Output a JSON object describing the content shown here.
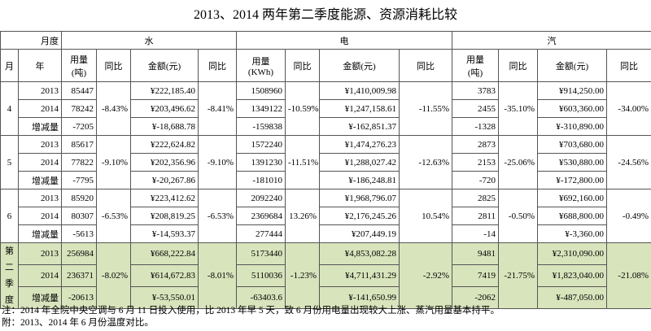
{
  "title": "2013、2014 两年第二季度能源、资源消耗比较",
  "header": {
    "month_label": "月度",
    "water": "水",
    "electricity": "电",
    "steam": "汽",
    "columns": [
      "月",
      "年",
      "用量\n(吨)",
      "同比",
      "金额(元)",
      "同比",
      "用量\n(KWh)",
      "同比",
      "金额(元)",
      "同比",
      "用量\n(吨)",
      "同比",
      "金额(元)",
      "同比"
    ]
  },
  "groups": [
    {
      "month": "4",
      "rows": [
        [
          "2013",
          "85447",
          "¥222,185.40",
          "1508960",
          "¥1,410,009.98",
          "3783",
          "¥914,250.00"
        ],
        [
          "2014",
          "78242",
          "¥203,496.62",
          "1349122",
          "¥1,247,158.61",
          "2455",
          "¥603,360.00"
        ],
        [
          "增减量",
          "-7205",
          "¥-18,688.78",
          "-159838",
          "¥-162,851.37",
          "-1328",
          "¥-310,890.00"
        ]
      ],
      "yoy": [
        "-8.43%",
        "-8.41%",
        "-10.59%",
        "-11.55%",
        "-35.10%",
        "-34.00%"
      ]
    },
    {
      "month": "5",
      "rows": [
        [
          "2013",
          "85617",
          "¥222,624.82",
          "1572240",
          "¥1,474,276.23",
          "2873",
          "¥703,680.00"
        ],
        [
          "2014",
          "77822",
          "¥202,356.96",
          "1391230",
          "¥1,288,027.42",
          "2153",
          "¥530,880.00"
        ],
        [
          "增减量",
          "-7795",
          "¥-20,267.86",
          "-181010",
          "¥-186,248.81",
          "-720",
          "¥-172,800.00"
        ]
      ],
      "yoy": [
        "-9.10%",
        "-9.10%",
        "-11.51%",
        "-12.63%",
        "-25.06%",
        "-24.56%"
      ]
    },
    {
      "month": "6",
      "rows": [
        [
          "2013",
          "85920",
          "¥223,412.62",
          "2092240",
          "¥1,968,796.07",
          "2825",
          "¥692,160.00"
        ],
        [
          "2014",
          "80307",
          "¥208,819.25",
          "2369684",
          "¥2,176,245.26",
          "2811",
          "¥688,800.00"
        ],
        [
          "增减量",
          "-5613",
          "¥-14,593.37",
          "277444",
          "¥207,449.19",
          "-14",
          "¥-3,360.00"
        ]
      ],
      "yoy": [
        "-6.53%",
        "-6.53%",
        "13.26%",
        "10.54%",
        "-0.50%",
        "-0.49%"
      ]
    },
    {
      "month": "第二季度",
      "rows": [
        [
          "2013",
          "256984",
          "¥668,222.84",
          "5173440",
          "¥4,853,082.28",
          "9481",
          "¥2,310,090.00"
        ],
        [
          "2014",
          "236371",
          "¥614,672.83",
          "5110036",
          "¥4,711,431.29",
          "7419",
          "¥1,823,040.00"
        ],
        [
          "增减量",
          "-20613",
          "¥-53,550.01",
          "-63403.6",
          "¥-141,650.99",
          "-2062",
          "¥-487,050.00"
        ]
      ],
      "yoy": [
        "-8.02%",
        "-8.01%",
        "-1.23%",
        "-2.92%",
        "-21.75%",
        "-21.08%"
      ]
    }
  ],
  "notes": [
    "注：2014 年全院中央空调与 6 月 11 日投入使用，比 2013 年早 5 天，致 6 月份用电量出现较大上涨、蒸汽用量基本持平。",
    "附：2013、2014 年 6 月份温度对比。"
  ]
}
